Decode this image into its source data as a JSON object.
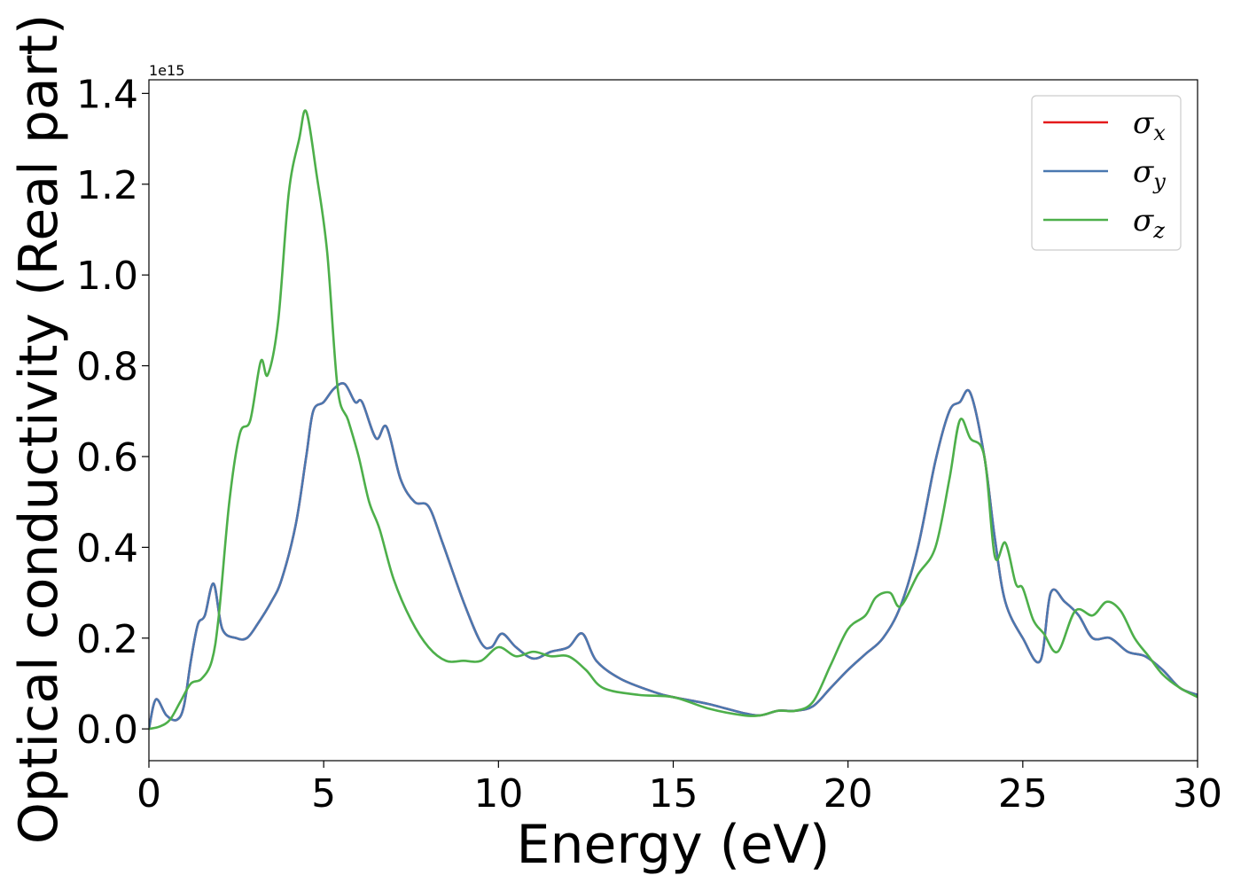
{
  "chart_data": {
    "type": "line",
    "title": "",
    "xlabel": "Energy (eV)",
    "ylabel": "Optical conductivity (Real part)",
    "y_offset_text": "1e15",
    "y_scale": 1000000000000000.0,
    "xlim": [
      0,
      30
    ],
    "ylim": [
      -0.07,
      1.43
    ],
    "grid": false,
    "legend_placement": "top-right",
    "x_ticks": [
      0,
      5,
      10,
      15,
      20,
      25,
      30
    ],
    "x_tick_labels": [
      "0",
      "5",
      "10",
      "15",
      "20",
      "25",
      "30"
    ],
    "y_ticks": [
      0.0,
      0.2,
      0.4,
      0.6,
      0.8,
      1.0,
      1.2,
      1.4
    ],
    "y_tick_labels": [
      "0.0",
      "0.2",
      "0.4",
      "0.6",
      "0.8",
      "1.0",
      "1.2",
      "1.4"
    ],
    "series": [
      {
        "name": "σ",
        "subscript": "x",
        "color": "#e41a1c",
        "x": [
          0,
          0.2,
          0.5,
          0.8,
          1.0,
          1.2,
          1.4,
          1.6,
          1.85,
          2.1,
          2.5,
          2.8,
          3.1,
          3.5,
          3.8,
          4.2,
          4.5,
          4.7,
          5.0,
          5.3,
          5.6,
          5.9,
          6.1,
          6.5,
          6.8,
          7.2,
          7.6,
          8.0,
          8.4,
          9.0,
          9.5,
          9.8,
          10.1,
          10.5,
          11.0,
          11.5,
          12.0,
          12.4,
          12.8,
          13.5,
          14.5,
          15.0,
          16.0,
          17.0,
          17.5,
          18.0,
          18.5,
          19.0,
          19.5,
          20.0,
          20.5,
          21.0,
          21.5,
          22.0,
          22.5,
          22.9,
          23.2,
          23.5,
          23.9,
          24.2,
          24.5,
          25.0,
          25.5,
          25.8,
          26.2,
          26.6,
          27.0,
          27.5,
          28.0,
          28.5,
          29.0,
          29.5,
          30.0
        ],
        "values": [
          0.0,
          0.065,
          0.03,
          0.02,
          0.05,
          0.15,
          0.23,
          0.25,
          0.32,
          0.22,
          0.2,
          0.2,
          0.23,
          0.28,
          0.33,
          0.45,
          0.6,
          0.7,
          0.72,
          0.75,
          0.76,
          0.72,
          0.72,
          0.64,
          0.665,
          0.55,
          0.5,
          0.49,
          0.41,
          0.28,
          0.19,
          0.18,
          0.21,
          0.18,
          0.155,
          0.17,
          0.18,
          0.21,
          0.15,
          0.11,
          0.08,
          0.07,
          0.055,
          0.035,
          0.03,
          0.04,
          0.04,
          0.05,
          0.09,
          0.13,
          0.165,
          0.2,
          0.27,
          0.4,
          0.59,
          0.7,
          0.72,
          0.74,
          0.6,
          0.42,
          0.28,
          0.2,
          0.15,
          0.3,
          0.28,
          0.25,
          0.2,
          0.2,
          0.17,
          0.16,
          0.13,
          0.09,
          0.075
        ]
      },
      {
        "name": "σ",
        "subscript": "y",
        "color": "#4a78b0",
        "x": [
          0,
          0.2,
          0.5,
          0.8,
          1.0,
          1.2,
          1.4,
          1.6,
          1.85,
          2.1,
          2.5,
          2.8,
          3.1,
          3.5,
          3.8,
          4.2,
          4.5,
          4.7,
          5.0,
          5.3,
          5.6,
          5.9,
          6.1,
          6.5,
          6.8,
          7.2,
          7.6,
          8.0,
          8.4,
          9.0,
          9.5,
          9.8,
          10.1,
          10.5,
          11.0,
          11.5,
          12.0,
          12.4,
          12.8,
          13.5,
          14.5,
          15.0,
          16.0,
          17.0,
          17.5,
          18.0,
          18.5,
          19.0,
          19.5,
          20.0,
          20.5,
          21.0,
          21.5,
          22.0,
          22.5,
          22.9,
          23.2,
          23.5,
          23.9,
          24.2,
          24.5,
          25.0,
          25.5,
          25.8,
          26.2,
          26.6,
          27.0,
          27.5,
          28.0,
          28.5,
          29.0,
          29.5,
          30.0
        ],
        "values": [
          0.0,
          0.065,
          0.03,
          0.02,
          0.05,
          0.15,
          0.23,
          0.25,
          0.32,
          0.22,
          0.2,
          0.2,
          0.23,
          0.28,
          0.33,
          0.45,
          0.6,
          0.7,
          0.72,
          0.75,
          0.76,
          0.72,
          0.72,
          0.64,
          0.665,
          0.55,
          0.5,
          0.49,
          0.41,
          0.28,
          0.19,
          0.18,
          0.21,
          0.18,
          0.155,
          0.17,
          0.18,
          0.21,
          0.15,
          0.11,
          0.08,
          0.07,
          0.055,
          0.035,
          0.03,
          0.04,
          0.04,
          0.05,
          0.09,
          0.13,
          0.165,
          0.2,
          0.27,
          0.4,
          0.59,
          0.7,
          0.72,
          0.74,
          0.6,
          0.42,
          0.28,
          0.2,
          0.15,
          0.3,
          0.28,
          0.25,
          0.2,
          0.2,
          0.17,
          0.16,
          0.13,
          0.09,
          0.075
        ]
      },
      {
        "name": "σ",
        "subscript": "z",
        "color": "#4daf4a",
        "x": [
          0,
          0.3,
          0.6,
          0.9,
          1.2,
          1.5,
          1.8,
          2.0,
          2.3,
          2.6,
          2.9,
          3.2,
          3.4,
          3.7,
          4.0,
          4.3,
          4.5,
          4.8,
          5.1,
          5.4,
          5.7,
          6.0,
          6.3,
          6.6,
          7.0,
          7.5,
          8.0,
          8.5,
          9.0,
          9.5,
          10.0,
          10.5,
          11.0,
          11.5,
          12.0,
          12.5,
          13.0,
          14.0,
          15.0,
          16.0,
          17.0,
          17.5,
          18.0,
          18.5,
          19.0,
          19.5,
          20.0,
          20.5,
          20.8,
          21.2,
          21.5,
          22.0,
          22.5,
          22.9,
          23.2,
          23.5,
          23.9,
          24.2,
          24.5,
          24.8,
          25.0,
          25.3,
          25.6,
          26.0,
          26.5,
          27.0,
          27.4,
          27.8,
          28.2,
          28.6,
          29.0,
          29.5,
          30.0
        ],
        "values": [
          0.0,
          0.005,
          0.02,
          0.06,
          0.1,
          0.11,
          0.15,
          0.25,
          0.5,
          0.65,
          0.68,
          0.81,
          0.78,
          0.9,
          1.18,
          1.3,
          1.36,
          1.22,
          1.05,
          0.75,
          0.68,
          0.6,
          0.5,
          0.44,
          0.33,
          0.24,
          0.18,
          0.15,
          0.15,
          0.15,
          0.18,
          0.16,
          0.17,
          0.16,
          0.16,
          0.13,
          0.09,
          0.075,
          0.07,
          0.045,
          0.03,
          0.03,
          0.04,
          0.04,
          0.06,
          0.14,
          0.22,
          0.25,
          0.29,
          0.3,
          0.27,
          0.34,
          0.4,
          0.55,
          0.68,
          0.64,
          0.6,
          0.38,
          0.41,
          0.32,
          0.31,
          0.24,
          0.21,
          0.17,
          0.26,
          0.25,
          0.28,
          0.26,
          0.2,
          0.16,
          0.12,
          0.09,
          0.07
        ]
      }
    ]
  }
}
